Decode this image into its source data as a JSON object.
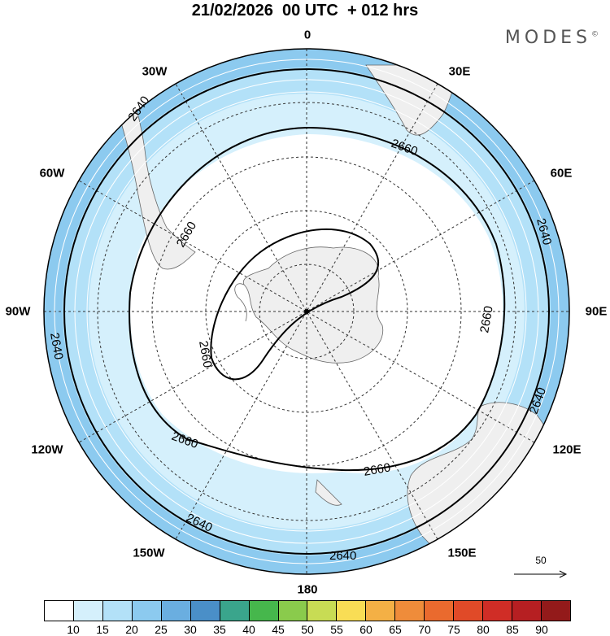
{
  "title": "21/02/2026  00 UTC  + 012 hrs",
  "brand": "MODES",
  "brand_mark": "©",
  "longitude_labels": [
    {
      "id": "lon-0",
      "text": "0"
    },
    {
      "id": "lon-30e",
      "text": "30E"
    },
    {
      "id": "lon-60e",
      "text": "60E"
    },
    {
      "id": "lon-90e",
      "text": "90E"
    },
    {
      "id": "lon-120e",
      "text": "120E"
    },
    {
      "id": "lon-150e",
      "text": "150E"
    },
    {
      "id": "lon-180",
      "text": "180"
    },
    {
      "id": "lon-150w",
      "text": "150W"
    },
    {
      "id": "lon-120w",
      "text": "120W"
    },
    {
      "id": "lon-90w",
      "text": "90W"
    },
    {
      "id": "lon-60w",
      "text": "60W"
    },
    {
      "id": "lon-30w",
      "text": "30W"
    }
  ],
  "contour_labels": [
    "2640",
    "2660"
  ],
  "reference_vector": {
    "value": "50",
    "icon": "arrow-right-icon"
  },
  "colorbar": {
    "colors": [
      "#ffffff",
      "#d5f0fc",
      "#b3e1f8",
      "#8ccaef",
      "#6aaee0",
      "#4a8fc8",
      "#3aa58c",
      "#46b74c",
      "#8acb4c",
      "#c8dc54",
      "#f9dd55",
      "#f4b045",
      "#ef8c3a",
      "#ea6a2e",
      "#e04a28",
      "#d02d26",
      "#b61f22",
      "#931a1a"
    ],
    "ticks": [
      "10",
      "15",
      "20",
      "25",
      "30",
      "35",
      "40",
      "45",
      "50",
      "55",
      "60",
      "65",
      "70",
      "75",
      "80",
      "85",
      "90"
    ]
  },
  "colors": {
    "ring_light": "#d5f0fc",
    "ring_mid": "#b3e1f8",
    "ring_dark": "#8ccaef",
    "land": "#efefef"
  }
}
